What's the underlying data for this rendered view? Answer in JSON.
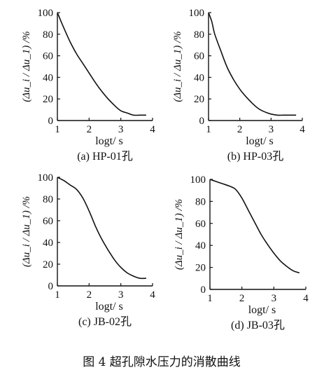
{
  "figure_caption": "图 4   超孔隙水压力的消散曲线",
  "chart_data": [
    {
      "type": "line",
      "caption": "(a) HP-01孔",
      "xlabel": "logt/ s",
      "ylabel": "(Δu_i / Δu_1) /%",
      "xlim": [
        1,
        4
      ],
      "ylim": [
        0,
        100
      ],
      "xticks": [
        1,
        2,
        3,
        4
      ],
      "yticks": [
        0,
        20,
        40,
        60,
        80,
        100
      ],
      "series": [
        {
          "x": [
            1.0,
            1.1,
            1.2,
            1.4,
            1.6,
            1.8,
            2.0,
            2.2,
            2.4,
            2.6,
            2.8,
            3.0,
            3.2,
            3.4,
            3.6,
            3.8
          ],
          "y": [
            100,
            93,
            86,
            73,
            62,
            53,
            44,
            35,
            27,
            20,
            14,
            9,
            7,
            5,
            5,
            5
          ]
        }
      ]
    },
    {
      "type": "line",
      "caption": "(b) HP-03孔",
      "xlabel": "logt/ s",
      "ylabel": "(Δu_i / Δu_1) /%",
      "xlim": [
        1,
        4
      ],
      "ylim": [
        0,
        100
      ],
      "xticks": [
        1,
        2,
        3,
        4
      ],
      "yticks": [
        0,
        20,
        40,
        60,
        80,
        100
      ],
      "series": [
        {
          "x": [
            1.0,
            1.1,
            1.2,
            1.4,
            1.6,
            1.8,
            2.0,
            2.2,
            2.4,
            2.6,
            2.8,
            3.0,
            3.2,
            3.4,
            3.6,
            3.8
          ],
          "y": [
            100,
            92,
            80,
            64,
            49,
            38,
            29,
            22,
            16,
            11,
            8,
            6,
            5,
            5,
            5,
            5
          ]
        }
      ]
    },
    {
      "type": "line",
      "caption": "(c) JB-02孔",
      "xlabel": "logt/ s",
      "ylabel": "(Δu_i / Δu_1) /%",
      "xlim": [
        1,
        4
      ],
      "ylim": [
        0,
        100
      ],
      "xticks": [
        1,
        2,
        3,
        4
      ],
      "yticks": [
        0,
        20,
        40,
        60,
        80,
        100
      ],
      "series": [
        {
          "x": [
            1.0,
            1.2,
            1.4,
            1.6,
            1.8,
            2.0,
            2.2,
            2.4,
            2.6,
            2.8,
            3.0,
            3.2,
            3.4,
            3.6,
            3.8
          ],
          "y": [
            100,
            97,
            93,
            89,
            81,
            69,
            55,
            43,
            33,
            24,
            17,
            12,
            9,
            7,
            7
          ]
        }
      ]
    },
    {
      "type": "line",
      "caption": "(d) JB-03孔",
      "xlabel": "logt/ s",
      "ylabel": "(Δu_i / Δu_1) /%",
      "xlim": [
        1,
        4
      ],
      "ylim": [
        0,
        100
      ],
      "xticks": [
        1,
        2,
        3,
        4
      ],
      "yticks": [
        0,
        20,
        40,
        60,
        80,
        100
      ],
      "series": [
        {
          "x": [
            1.0,
            1.2,
            1.4,
            1.6,
            1.8,
            2.0,
            2.2,
            2.4,
            2.6,
            2.8,
            3.0,
            3.2,
            3.4,
            3.6,
            3.8
          ],
          "y": [
            100,
            98,
            96,
            94,
            91,
            83,
            72,
            61,
            50,
            41,
            33,
            26,
            21,
            17,
            15
          ]
        }
      ]
    }
  ]
}
